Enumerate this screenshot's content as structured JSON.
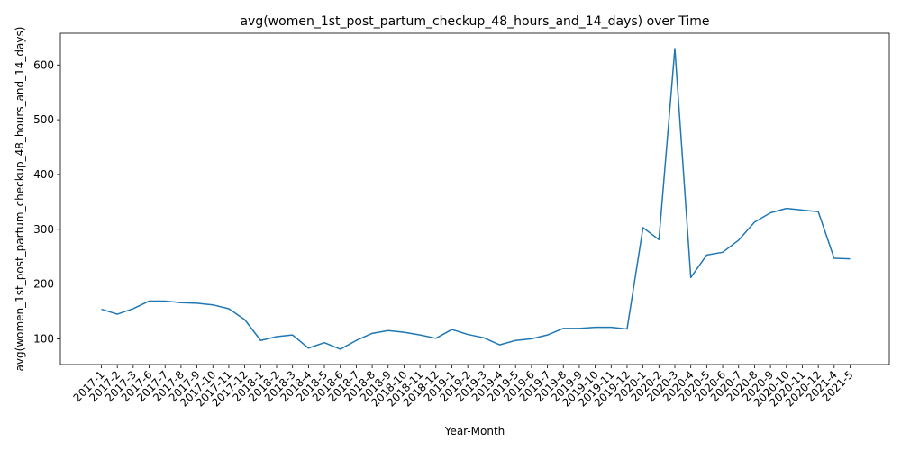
{
  "chart_data": {
    "type": "line",
    "title": "avg(women_1st_post_partum_checkup_48_hours_and_14_days) over Time",
    "xlabel": "Year-Month",
    "ylabel": "avg(women_1st_post_partum_checkup_48_hours_and_14_days)",
    "ylim": [
      53,
      658
    ],
    "yticks": [
      100,
      200,
      300,
      400,
      500,
      600
    ],
    "grid": false,
    "line_color": "#1f77b4",
    "categories": [
      "2017-1",
      "2017-2",
      "2017-3",
      "2017-6",
      "2017-7",
      "2017-8",
      "2017-9",
      "2017-10",
      "2017-11",
      "2017-12",
      "2018-1",
      "2018-2",
      "2018-3",
      "2018-4",
      "2018-5",
      "2018-6",
      "2018-7",
      "2018-8",
      "2018-9",
      "2018-10",
      "2018-11",
      "2018-12",
      "2019-1",
      "2019-2",
      "2019-3",
      "2019-4",
      "2019-5",
      "2019-6",
      "2019-7",
      "2019-8",
      "2019-9",
      "2019-10",
      "2019-11",
      "2019-12",
      "2020-1",
      "2020-2",
      "2020-3",
      "2020-4",
      "2020-5",
      "2020-6",
      "2020-7",
      "2020-8",
      "2020-9",
      "2020-10",
      "2020-11",
      "2020-12",
      "2021-4",
      "2021-5"
    ],
    "values": [
      154,
      145,
      155,
      169,
      169,
      166,
      165,
      162,
      155,
      135,
      97,
      104,
      107,
      83,
      93,
      81,
      97,
      110,
      115,
      112,
      107,
      101,
      117,
      108,
      102,
      89,
      97,
      100,
      107,
      119,
      119,
      121,
      121,
      118,
      303,
      281,
      630,
      212,
      253,
      258,
      280,
      313,
      330,
      338,
      335,
      332,
      247,
      246
    ]
  }
}
